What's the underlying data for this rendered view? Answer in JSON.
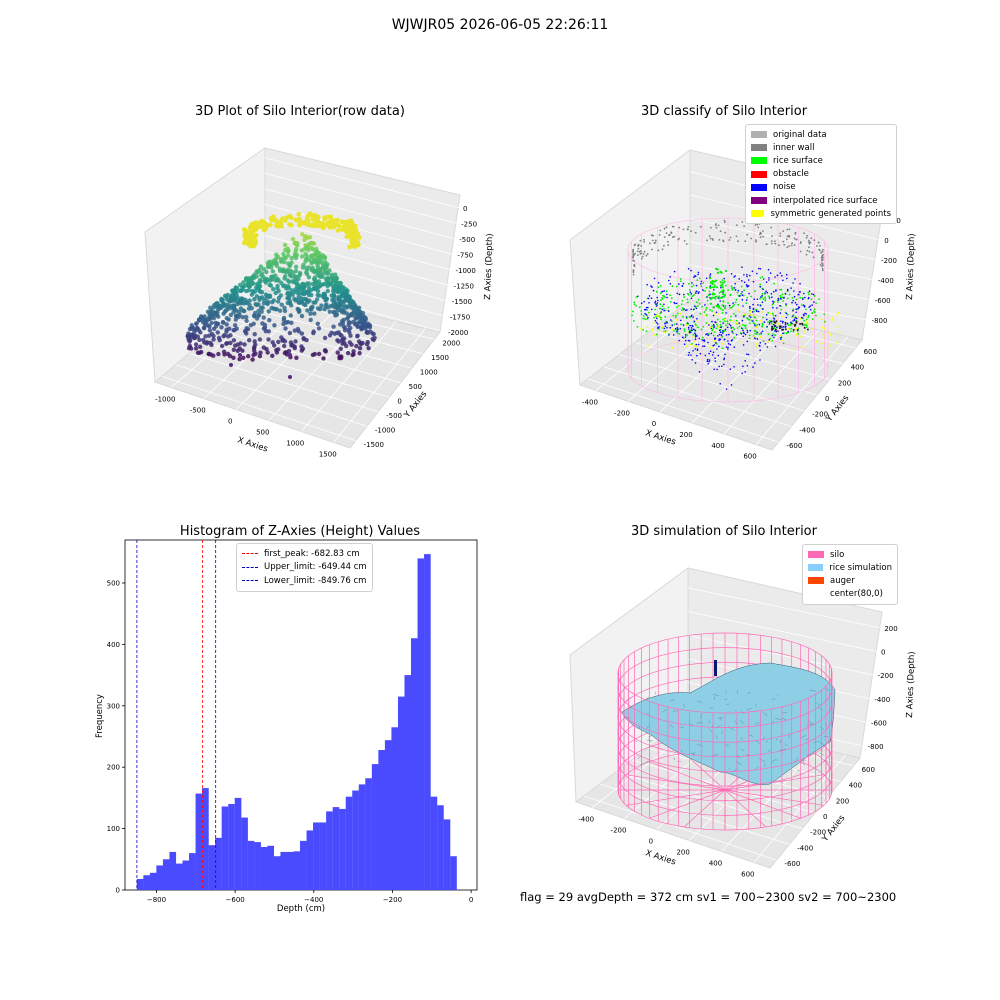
{
  "suptitle": "WJWJR05 2026-06-05 22:26:11",
  "footer": "flag = 29  avgDepth = 372 cm  sv1 = 700~2300  sv2 = 700~2300",
  "chart_data": [
    {
      "type": "scatter",
      "subtype": "3d",
      "title": "3D Plot of Silo Interior(row data)",
      "xlabel": "X Axies",
      "ylabel": "Y Axies",
      "zlabel": "Z Axies (Depth)",
      "x_ticks": [
        "-1000",
        "-500",
        "0",
        "500",
        "1000",
        "1500"
      ],
      "y_ticks": [
        "-1500",
        "-1000",
        "-500",
        "0",
        "500",
        "1000",
        "1500",
        "2000"
      ],
      "z_ticks": [
        "0",
        "-250",
        "-500",
        "-750",
        "-1000",
        "-1250",
        "-1500",
        "-1750",
        "-2000"
      ],
      "colormap": "viridis"
    },
    {
      "type": "scatter",
      "subtype": "3d",
      "title": "3D classify of Silo Interior",
      "xlabel": "X Axies",
      "ylabel": "Y Axies",
      "zlabel": "Z Axies (Depth)",
      "x_ticks": [
        "-400",
        "-200",
        "0",
        "200",
        "400",
        "600"
      ],
      "y_ticks": [
        "-600",
        "-400",
        "-200",
        "0",
        "200",
        "400",
        "600"
      ],
      "z_ticks": [
        "200",
        "0",
        "-200",
        "-400",
        "-600",
        "-800"
      ],
      "legend": [
        {
          "label": "original data",
          "color": "#b0b0b0"
        },
        {
          "label": "inner wall",
          "color": "#808080"
        },
        {
          "label": "rice surface",
          "color": "#00ff00"
        },
        {
          "label": "obstacle",
          "color": "#ff0000"
        },
        {
          "label": "noise",
          "color": "#0000ff"
        },
        {
          "label": "interpolated rice surface",
          "color": "#800080"
        },
        {
          "label": "symmetric generated points",
          "color": "#ffff00"
        }
      ],
      "legend_position": "top-right"
    },
    {
      "type": "bar",
      "subtype": "histogram",
      "title": "Histogram of Z-Axies (Height) Values",
      "xlabel": "Depth (cm)",
      "ylabel": "Frequency",
      "xlim": [
        -880,
        15
      ],
      "ylim": [
        0,
        570
      ],
      "x_ticks": [
        -800,
        -600,
        -400,
        -200,
        0
      ],
      "y_ticks": [
        0,
        100,
        200,
        300,
        400,
        500
      ],
      "bar_color": "#4a4aff",
      "bin_start": -850,
      "bin_width": 16.6,
      "values": [
        18,
        24,
        28,
        40,
        50,
        62,
        43,
        48,
        60,
        157,
        166,
        73,
        85,
        136,
        140,
        150,
        118,
        80,
        78,
        70,
        72,
        55,
        62,
        62,
        63,
        80,
        97,
        110,
        110,
        128,
        135,
        132,
        152,
        162,
        172,
        182,
        205,
        228,
        244,
        265,
        315,
        350,
        410,
        540,
        547,
        152,
        138,
        115,
        55
      ],
      "vlines": [
        {
          "label": "first_peak: -682.83 cm",
          "value": -682.83,
          "color": "#ff0000"
        },
        {
          "label": "Upper_limit: -649.44 cm",
          "value": -649.44,
          "color": "#0000cc"
        },
        {
          "label": "Lower_limit: -849.76 cm",
          "value": -849.76,
          "color": "#0000cc"
        }
      ],
      "legend_position": "top-center"
    },
    {
      "type": "area",
      "subtype": "3d-surface",
      "title": "3D simulation of Silo Interior",
      "xlabel": "X Axies",
      "ylabel": "Y Axies",
      "zlabel": "Z Axies (Depth)",
      "x_ticks": [
        "-400",
        "-200",
        "0",
        "200",
        "400",
        "600"
      ],
      "y_ticks": [
        "-600",
        "-400",
        "-200",
        "0",
        "200",
        "400",
        "600"
      ],
      "z_ticks": [
        "200",
        "0",
        "-200",
        "-400",
        "-600",
        "-800"
      ],
      "legend": [
        {
          "label": "silo",
          "color": "#ff69b4"
        },
        {
          "label": "rice simulation",
          "color": "#87cefa"
        },
        {
          "label": "auger",
          "color": "#ff4500"
        },
        {
          "label": "center(80,0)",
          "color": "#ffffff"
        }
      ],
      "legend_position": "top-right"
    }
  ]
}
